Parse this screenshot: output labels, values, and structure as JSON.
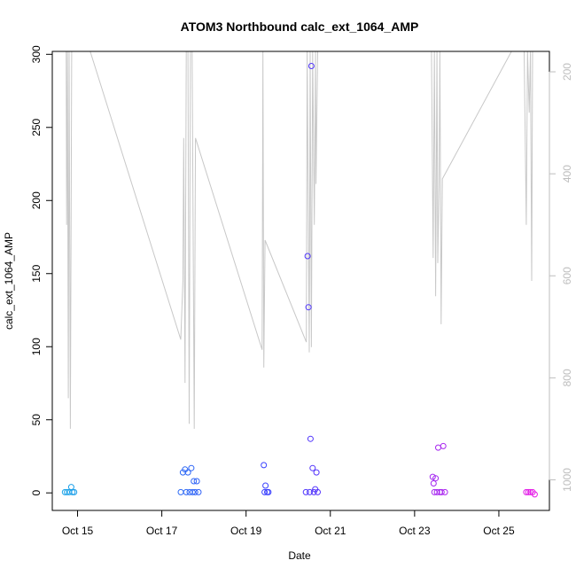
{
  "chart_data": {
    "type": "scatter",
    "title": "ATOM3 Northbound calc_ext_1064_AMP",
    "xlabel": "Date",
    "ylabel": "calc_ext_1064_AMP",
    "x_tick_labels": [
      "Oct 15",
      "Oct 17",
      "Oct 19",
      "Oct 21",
      "Oct 23",
      "Oct 25"
    ],
    "x_tick_values": [
      15,
      17,
      19,
      21,
      23,
      25
    ],
    "xlim": [
      14.4,
      26.2
    ],
    "ylim": [
      -12,
      302
    ],
    "y_ticks": [
      0,
      50,
      100,
      150,
      200,
      250,
      300
    ],
    "y2_ticks": [
      200,
      400,
      600,
      800,
      1000
    ],
    "y2lim": [
      1060,
      160
    ],
    "colors": {
      "line": "#c8c8c8",
      "axis": "#000000",
      "y2_axis": "#bdbdbd",
      "point_start": "#1aa3e8",
      "point_mid": "#3b3bff",
      "point_end": "#e61ae6"
    },
    "points": [
      {
        "x": 14.7,
        "y": 0.5
      },
      {
        "x": 14.75,
        "y": 0.5
      },
      {
        "x": 14.8,
        "y": 0.5
      },
      {
        "x": 14.85,
        "y": 4
      },
      {
        "x": 14.88,
        "y": 0.5
      },
      {
        "x": 14.92,
        "y": 0.5
      },
      {
        "x": 17.45,
        "y": 0.5
      },
      {
        "x": 17.5,
        "y": 14
      },
      {
        "x": 17.55,
        "y": 16
      },
      {
        "x": 17.58,
        "y": 0.5
      },
      {
        "x": 17.62,
        "y": 14
      },
      {
        "x": 17.66,
        "y": 0.5
      },
      {
        "x": 17.7,
        "y": 17
      },
      {
        "x": 17.73,
        "y": 0.5
      },
      {
        "x": 17.76,
        "y": 8
      },
      {
        "x": 17.79,
        "y": 0.5
      },
      {
        "x": 17.83,
        "y": 8
      },
      {
        "x": 17.87,
        "y": 0.5
      },
      {
        "x": 19.42,
        "y": 19
      },
      {
        "x": 19.44,
        "y": 0.5
      },
      {
        "x": 19.46,
        "y": 5
      },
      {
        "x": 19.5,
        "y": 0.5
      },
      {
        "x": 19.53,
        "y": 0.5
      },
      {
        "x": 20.42,
        "y": 0.5
      },
      {
        "x": 20.46,
        "y": 162
      },
      {
        "x": 20.48,
        "y": 127
      },
      {
        "x": 20.51,
        "y": 0.5
      },
      {
        "x": 20.53,
        "y": 37
      },
      {
        "x": 20.55,
        "y": 292
      },
      {
        "x": 20.58,
        "y": 17
      },
      {
        "x": 20.61,
        "y": 0.5
      },
      {
        "x": 20.64,
        "y": 2.5
      },
      {
        "x": 20.67,
        "y": 14
      },
      {
        "x": 20.7,
        "y": 0.5
      },
      {
        "x": 23.43,
        "y": 11
      },
      {
        "x": 23.45,
        "y": 6.5
      },
      {
        "x": 23.47,
        "y": 0.5
      },
      {
        "x": 23.5,
        "y": 10
      },
      {
        "x": 23.53,
        "y": 0.5
      },
      {
        "x": 23.56,
        "y": 31
      },
      {
        "x": 23.6,
        "y": 0.5
      },
      {
        "x": 23.64,
        "y": 0.5
      },
      {
        "x": 23.68,
        "y": 32
      },
      {
        "x": 23.72,
        "y": 0.5
      },
      {
        "x": 25.65,
        "y": 0.5
      },
      {
        "x": 25.7,
        "y": 0.5
      },
      {
        "x": 25.75,
        "y": 0.5
      },
      {
        "x": 25.8,
        "y": 0.5
      },
      {
        "x": 25.85,
        "y": -1
      }
    ],
    "line_series": [
      {
        "x": 14.73,
        "y2": 160
      },
      {
        "x": 14.74,
        "y2": 500
      },
      {
        "x": 14.76,
        "y2": 160
      },
      {
        "x": 14.78,
        "y2": 840
      },
      {
        "x": 14.8,
        "y2": 160
      },
      {
        "x": 14.83,
        "y2": 900
      },
      {
        "x": 14.86,
        "y2": 160
      },
      {
        "x": 14.9,
        "y2": 160
      },
      {
        "x": 15.3,
        "y2": 160
      },
      {
        "x": 17.45,
        "y2": 725
      },
      {
        "x": 17.5,
        "y2": 610
      },
      {
        "x": 17.52,
        "y2": 330
      },
      {
        "x": 17.55,
        "y2": 810
      },
      {
        "x": 17.58,
        "y2": 160
      },
      {
        "x": 17.62,
        "y2": 160
      },
      {
        "x": 17.65,
        "y2": 890
      },
      {
        "x": 17.68,
        "y2": 160
      },
      {
        "x": 17.72,
        "y2": 160
      },
      {
        "x": 17.77,
        "y2": 900
      },
      {
        "x": 17.8,
        "y2": 330
      },
      {
        "x": 19.38,
        "y2": 745
      },
      {
        "x": 19.4,
        "y2": 160
      },
      {
        "x": 19.42,
        "y2": 780
      },
      {
        "x": 19.45,
        "y2": 530
      },
      {
        "x": 20.43,
        "y2": 730
      },
      {
        "x": 20.45,
        "y2": 160
      },
      {
        "x": 20.5,
        "y2": 750
      },
      {
        "x": 20.52,
        "y2": 160
      },
      {
        "x": 20.55,
        "y2": 740
      },
      {
        "x": 20.58,
        "y2": 160
      },
      {
        "x": 20.62,
        "y2": 500
      },
      {
        "x": 20.65,
        "y2": 160
      },
      {
        "x": 20.66,
        "y2": 420
      },
      {
        "x": 20.7,
        "y2": 160
      },
      {
        "x": 23.4,
        "y2": 160
      },
      {
        "x": 23.44,
        "y2": 565
      },
      {
        "x": 23.47,
        "y2": 160
      },
      {
        "x": 23.5,
        "y2": 640
      },
      {
        "x": 23.53,
        "y2": 160
      },
      {
        "x": 23.55,
        "y2": 575
      },
      {
        "x": 23.58,
        "y2": 420
      },
      {
        "x": 23.6,
        "y2": 160
      },
      {
        "x": 23.63,
        "y2": 695
      },
      {
        "x": 23.66,
        "y2": 410
      },
      {
        "x": 25.3,
        "y2": 160
      },
      {
        "x": 25.6,
        "y2": 160
      },
      {
        "x": 25.65,
        "y2": 500
      },
      {
        "x": 25.68,
        "y2": 160
      },
      {
        "x": 25.72,
        "y2": 280
      },
      {
        "x": 25.75,
        "y2": 160
      },
      {
        "x": 25.78,
        "y2": 610
      },
      {
        "x": 25.8,
        "y2": 160
      }
    ]
  }
}
